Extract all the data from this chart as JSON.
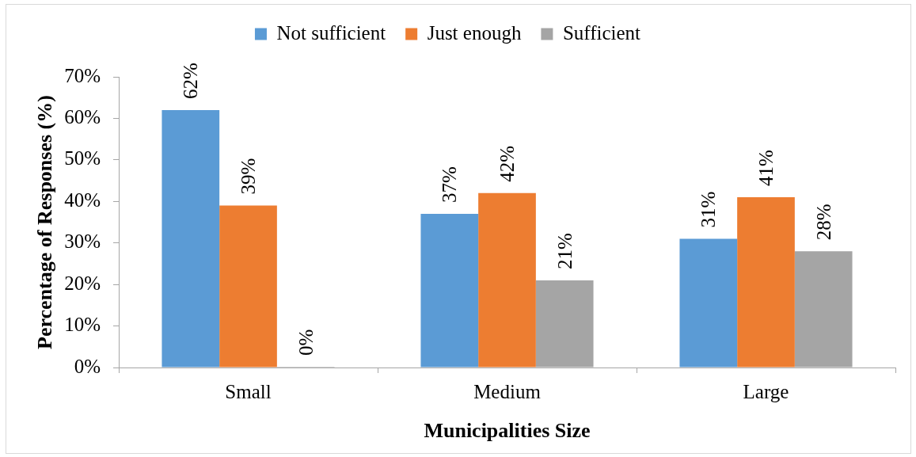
{
  "chart_data": {
    "type": "bar",
    "xlabel": "Municipalities Size",
    "ylabel": "Percentage of Responses (%)",
    "categories": [
      "Small",
      "Medium",
      "Large"
    ],
    "series": [
      {
        "name": "Not sufficient",
        "color": "#5b9bd5",
        "values": [
          62,
          37,
          31
        ],
        "value_labels": [
          "62%",
          "37%",
          "31%"
        ]
      },
      {
        "name": "Just enough",
        "color": "#ed7d31",
        "values": [
          39,
          42,
          41
        ],
        "value_labels": [
          "39%",
          "42%",
          "41%"
        ]
      },
      {
        "name": "Sufficient",
        "color": "#a5a5a5",
        "values": [
          0,
          21,
          28
        ],
        "value_labels": [
          "0%",
          "21%",
          "28%"
        ]
      }
    ],
    "ylim": [
      0,
      70
    ],
    "yticks": [
      {
        "value": 0,
        "label": "0%"
      },
      {
        "value": 10,
        "label": "10%"
      },
      {
        "value": 20,
        "label": "20%"
      },
      {
        "value": 30,
        "label": "30%"
      },
      {
        "value": 40,
        "label": "40%"
      },
      {
        "value": 50,
        "label": "50%"
      },
      {
        "value": 60,
        "label": "60%"
      },
      {
        "value": 70,
        "label": "70%"
      }
    ],
    "grid": false,
    "legend": "top"
  }
}
